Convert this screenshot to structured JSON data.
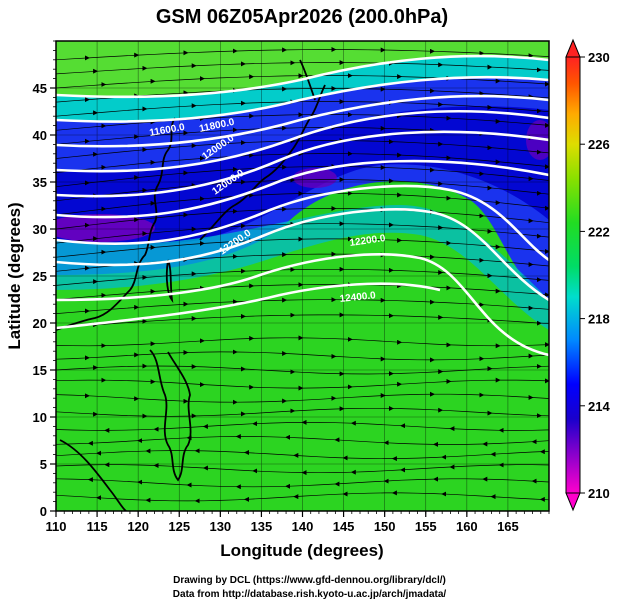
{
  "title": "GSM 06Z05Apr2026 (200.0hPa)",
  "x_axis": {
    "label": "Longitude (degrees)",
    "range": [
      110,
      170
    ],
    "ticks": [
      "110",
      "115",
      "120",
      "125",
      "130",
      "135",
      "140",
      "145",
      "150",
      "155",
      "160",
      "165"
    ]
  },
  "y_axis": {
    "label": "Latitude (degrees)",
    "range": [
      0,
      50
    ],
    "ticks": [
      "0",
      "5",
      "10",
      "15",
      "20",
      "25",
      "30",
      "35",
      "40",
      "45"
    ]
  },
  "colorbar": {
    "range": [
      210,
      230
    ],
    "ticks": [
      "210",
      "214",
      "218",
      "222",
      "226",
      "230"
    ],
    "colors": [
      "#ff00cc",
      "#9900cc",
      "#3300cc",
      "#0000ff",
      "#0066ff",
      "#00ccff",
      "#00ddaa",
      "#11dd44",
      "#33dd11",
      "#99e000",
      "#dddd00",
      "#ffaa00",
      "#ff5500",
      "#ff2222"
    ]
  },
  "contour_labels": [
    "11600.0",
    "11800.0",
    "12000.0",
    "12000.0",
    "12200.0",
    "12200.0",
    "12400.0"
  ],
  "credits": {
    "line1": "Drawing by DCL (https://www.gfd-dennou.org/library/dcl/)",
    "line2": "Data from http://database.rish.kyoto-u.ac.jp/arch/jmadata/"
  },
  "colors": {
    "contour": "#ffffff",
    "coast": "#000000",
    "grid": "#000000"
  }
}
